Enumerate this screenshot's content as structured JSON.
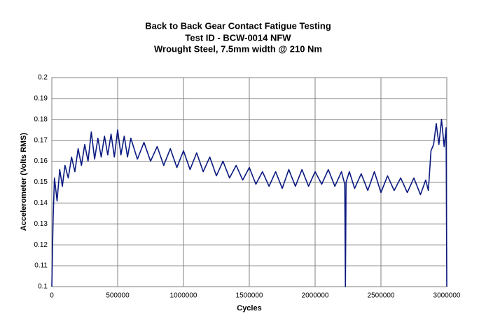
{
  "chart_data": {
    "type": "line",
    "title": "Back to Back Gear Contact Fatigue Testing",
    "subtitle": [
      "Test ID - BCW-0014 NFW",
      "Wrought Steel, 7.5mm width @ 210 Nm"
    ],
    "x_label": "Cycles",
    "y_label": "Accelerometer (Volts RMS)",
    "xlim": [
      0,
      3000000
    ],
    "ylim": [
      0.1,
      0.2
    ],
    "xticks": [
      0,
      500000,
      1000000,
      1500000,
      2000000,
      2500000,
      3000000
    ],
    "yticks": [
      0.1,
      0.11,
      0.12,
      0.13,
      0.14,
      0.15,
      0.16,
      0.17,
      0.18,
      0.19,
      0.2
    ],
    "grid": true,
    "series": [
      {
        "color": "#0b1a80",
        "x": [
          0,
          10000,
          20000,
          40000,
          60000,
          80000,
          100000,
          125000,
          150000,
          175000,
          200000,
          225000,
          250000,
          275000,
          300000,
          325000,
          350000,
          375000,
          400000,
          425000,
          450000,
          475000,
          500000,
          525000,
          550000,
          575000,
          600000,
          650000,
          700000,
          750000,
          800000,
          850000,
          900000,
          950000,
          1000000,
          1050000,
          1100000,
          1150000,
          1200000,
          1250000,
          1300000,
          1350000,
          1400000,
          1450000,
          1500000,
          1550000,
          1600000,
          1650000,
          1700000,
          1750000,
          1800000,
          1850000,
          1900000,
          1950000,
          2000000,
          2050000,
          2100000,
          2150000,
          2200000,
          2225000,
          2230000,
          2235000,
          2260000,
          2300000,
          2350000,
          2400000,
          2450000,
          2500000,
          2550000,
          2600000,
          2650000,
          2700000,
          2750000,
          2800000,
          2840000,
          2860000,
          2880000,
          2900000,
          2920000,
          2940000,
          2960000,
          2980000,
          2995000,
          3000000
        ],
        "values": [
          0.1,
          0.133,
          0.152,
          0.141,
          0.156,
          0.148,
          0.158,
          0.152,
          0.162,
          0.155,
          0.166,
          0.158,
          0.168,
          0.16,
          0.174,
          0.161,
          0.171,
          0.162,
          0.172,
          0.163,
          0.173,
          0.162,
          0.175,
          0.163,
          0.172,
          0.162,
          0.171,
          0.161,
          0.169,
          0.16,
          0.167,
          0.158,
          0.166,
          0.157,
          0.165,
          0.156,
          0.164,
          0.155,
          0.162,
          0.153,
          0.16,
          0.152,
          0.158,
          0.151,
          0.157,
          0.149,
          0.155,
          0.148,
          0.155,
          0.147,
          0.156,
          0.148,
          0.156,
          0.148,
          0.155,
          0.149,
          0.156,
          0.148,
          0.155,
          0.149,
          0.1,
          0.15,
          0.155,
          0.147,
          0.154,
          0.146,
          0.155,
          0.145,
          0.153,
          0.146,
          0.152,
          0.145,
          0.152,
          0.144,
          0.151,
          0.146,
          0.165,
          0.168,
          0.178,
          0.168,
          0.18,
          0.167,
          0.176,
          0.1
        ]
      }
    ]
  }
}
